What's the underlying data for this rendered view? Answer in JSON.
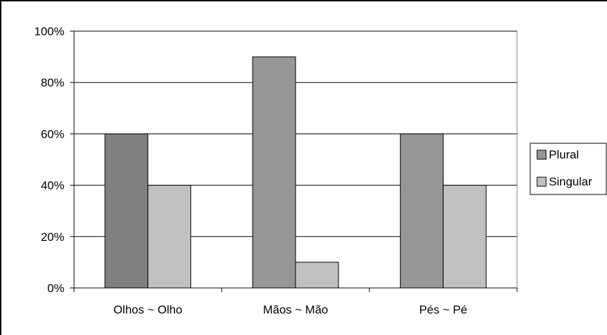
{
  "chart_data": {
    "type": "bar",
    "categories": [
      "Olhos ~ Olho",
      "Mãos ~ Mão",
      "Pés ~ Pé"
    ],
    "series": [
      {
        "name": "Plural",
        "values": [
          60,
          90,
          60
        ],
        "colors": [
          "#808080",
          "#969696",
          "#969696"
        ]
      },
      {
        "name": "Singular",
        "values": [
          40,
          10,
          40
        ],
        "colors": [
          "#c0c0c0",
          "#c0c0c0",
          "#c0c0c0"
        ]
      }
    ],
    "ylim": [
      0,
      100
    ],
    "yticks": [
      0,
      20,
      40,
      60,
      80,
      100
    ],
    "ytick_labels": [
      "0%",
      "20%",
      "40%",
      "60%",
      "80%",
      "100%"
    ],
    "grid": true,
    "legend_position": "right",
    "legend": {
      "entries": [
        {
          "label": "Plural",
          "color": "#969696"
        },
        {
          "label": "Singular",
          "color": "#c0c0c0"
        }
      ]
    },
    "title": "",
    "xlabel": "",
    "ylabel": ""
  }
}
